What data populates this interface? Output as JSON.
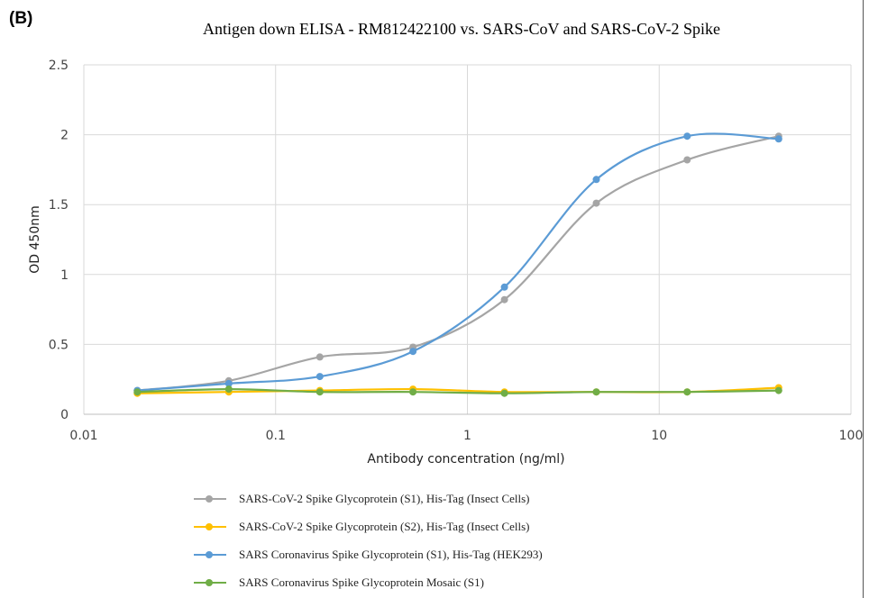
{
  "panel_label": "(B)",
  "colors": {
    "grid": "#d9d9d9",
    "axis": "#bfbfbf",
    "s1_sars2": "#a5a5a5",
    "s2_sars2": "#ffc000",
    "s1_sars": "#5b9bd5",
    "mosaic": "#70ad47"
  },
  "chart_data": {
    "type": "line",
    "title": "Antigen down ELISA - RM812422100 vs. SARS-CoV and SARS-CoV-2 Spike",
    "xlabel": "Antibody concentration (ng/ml)",
    "ylabel": "OD 450nm",
    "xscale": "log",
    "xlim": [
      0.01,
      100
    ],
    "ylim": [
      0,
      2.5
    ],
    "xticks": [
      0.01,
      0.1,
      1,
      10,
      100
    ],
    "xtick_labels": [
      "0.01",
      "0.1",
      "1",
      "10",
      "100"
    ],
    "yticks": [
      0,
      0.5,
      1,
      1.5,
      2,
      2.5
    ],
    "ytick_labels": [
      "0",
      "0.5",
      "1",
      "1.5",
      "2",
      "2.5"
    ],
    "grid": true,
    "legend_position": "bottom",
    "x": [
      0.019,
      0.057,
      0.17,
      0.52,
      1.56,
      4.7,
      14,
      42
    ],
    "series": [
      {
        "name": "SARS-CoV-2 Spike Glycoprotein (S1), His-Tag (Insect Cells)",
        "color": "#a5a5a5",
        "values": [
          0.17,
          0.24,
          0.41,
          0.48,
          0.82,
          1.51,
          1.82,
          1.99
        ]
      },
      {
        "name": "SARS-CoV-2 Spike Glycoprotein (S2), His-Tag (Insect Cells)",
        "color": "#ffc000",
        "values": [
          0.15,
          0.16,
          0.17,
          0.18,
          0.16,
          0.16,
          0.16,
          0.19
        ]
      },
      {
        "name": "SARS Coronavirus Spike Glycoprotein (S1), His-Tag (HEK293)",
        "color": "#5b9bd5",
        "values": [
          0.17,
          0.22,
          0.27,
          0.45,
          0.91,
          1.68,
          1.99,
          1.97
        ]
      },
      {
        "name": "SARS Coronavirus Spike Glycoprotein Mosaic (S1)",
        "color": "#70ad47",
        "values": [
          0.16,
          0.18,
          0.16,
          0.16,
          0.15,
          0.16,
          0.16,
          0.17
        ]
      }
    ]
  }
}
